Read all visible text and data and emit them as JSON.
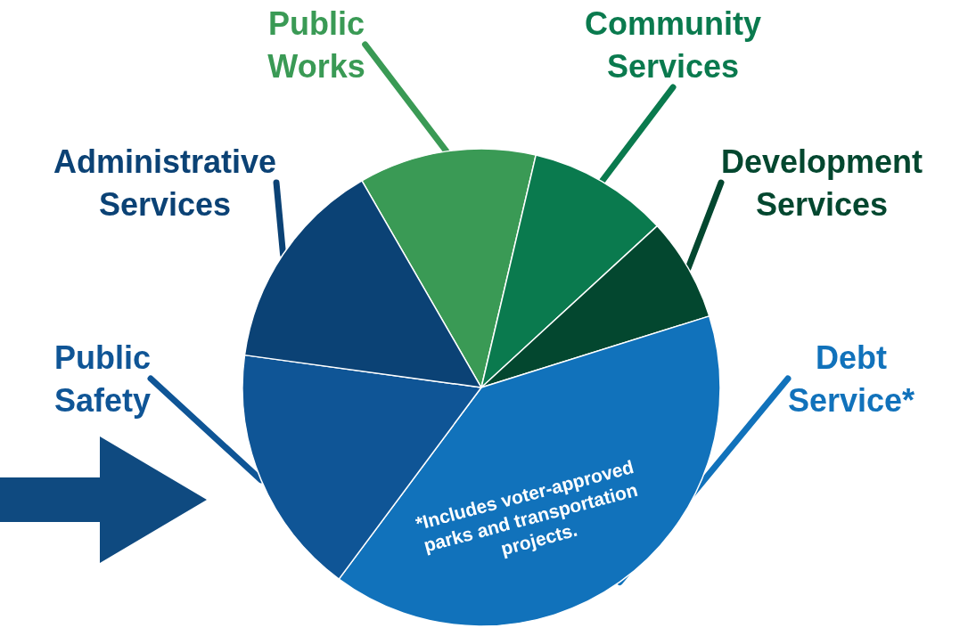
{
  "chart_data": {
    "type": "pie",
    "categories": [
      "Public Works",
      "Community Services",
      "Development Services",
      "Debt Service*",
      "Public Safety",
      "Administrative Services"
    ],
    "values": [
      12,
      9.5,
      7,
      40,
      17,
      14.5
    ],
    "colors": [
      "#3a9a55",
      "#0a7a4e",
      "#03472f",
      "#1172bb",
      "#0f5596",
      "#0b4275"
    ],
    "annotations": [
      "*Includes voter-approved parks and transportation projects."
    ],
    "legend": false
  }
}
